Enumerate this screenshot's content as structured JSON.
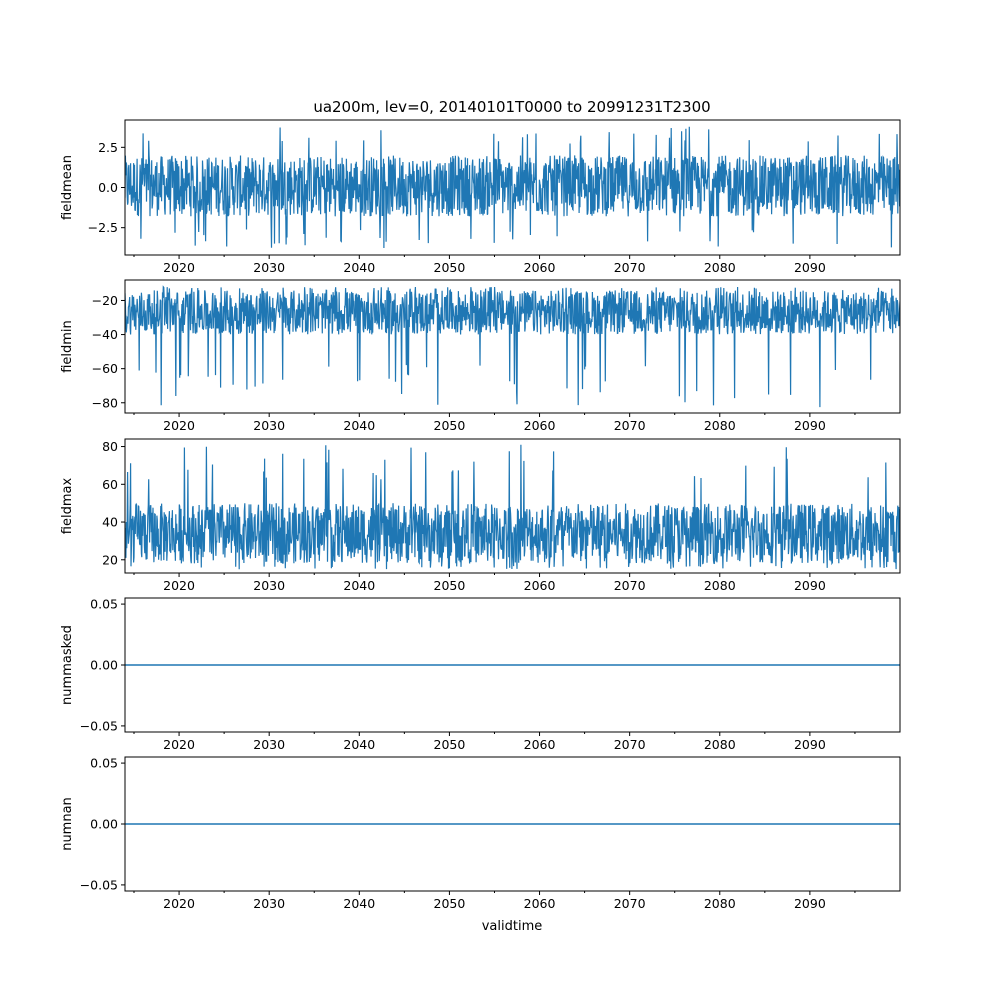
{
  "figure": {
    "title": "ua200m, lev=0, 20140101T0000 to 20991231T2300",
    "xlabel": "validtime"
  },
  "chart_data": [
    {
      "type": "line",
      "ylabel": "fieldmean",
      "xlim": [
        2014.0,
        2100.0
      ],
      "ylim": [
        -4.2,
        4.2
      ],
      "yticks": [
        -2.5,
        0.0,
        2.5
      ],
      "ytick_labels": [
        "−2.5",
        "0.0",
        "2.5"
      ],
      "xticks": [
        2020,
        2030,
        2040,
        2050,
        2060,
        2070,
        2080,
        2090
      ],
      "xtick_labels": [
        "2020",
        "2030",
        "2040",
        "2050",
        "2060",
        "2070",
        "2080",
        "2090"
      ],
      "series": [
        {
          "name": "fieldmean",
          "color": "#1f77b4",
          "style": "noise",
          "baseline": 0.0,
          "typical_low": -1.8,
          "typical_high": 2.0,
          "extreme_low": -3.8,
          "extreme_high": 3.8
        }
      ]
    },
    {
      "type": "line",
      "ylabel": "fieldmin",
      "xlim": [
        2014.0,
        2100.0
      ],
      "ylim": [
        -86.0,
        -8.0
      ],
      "yticks": [
        -80,
        -60,
        -40,
        -20
      ],
      "ytick_labels": [
        "−80",
        "−60",
        "−40",
        "−20"
      ],
      "xticks": [
        2020,
        2030,
        2040,
        2050,
        2060,
        2070,
        2080,
        2090
      ],
      "xtick_labels": [
        "2020",
        "2030",
        "2040",
        "2050",
        "2060",
        "2070",
        "2080",
        "2090"
      ],
      "series": [
        {
          "name": "fieldmin",
          "color": "#1f77b4",
          "style": "noise",
          "baseline": -25.0,
          "typical_low": -40.0,
          "typical_high": -14.0,
          "extreme_low": -83.0,
          "extreme_high": -12.0
        }
      ]
    },
    {
      "type": "line",
      "ylabel": "fieldmax",
      "xlim": [
        2014.0,
        2100.0
      ],
      "ylim": [
        13.0,
        84.0
      ],
      "yticks": [
        20,
        40,
        60,
        80
      ],
      "ytick_labels": [
        "20",
        "40",
        "60",
        "80"
      ],
      "xticks": [
        2020,
        2030,
        2040,
        2050,
        2060,
        2070,
        2080,
        2090
      ],
      "xtick_labels": [
        "2020",
        "2030",
        "2040",
        "2050",
        "2060",
        "2070",
        "2080",
        "2090"
      ],
      "series": [
        {
          "name": "fieldmax",
          "color": "#1f77b4",
          "style": "noise",
          "baseline": 30.0,
          "typical_low": 18.0,
          "typical_high": 50.0,
          "extreme_low": 15.0,
          "extreme_high": 81.0
        }
      ]
    },
    {
      "type": "line",
      "ylabel": "nummasked",
      "xlim": [
        2014.0,
        2100.0
      ],
      "ylim": [
        -0.055,
        0.055
      ],
      "yticks": [
        -0.05,
        0.0,
        0.05
      ],
      "ytick_labels": [
        "−0.05",
        "0.00",
        "0.05"
      ],
      "xticks": [
        2020,
        2030,
        2040,
        2050,
        2060,
        2070,
        2080,
        2090
      ],
      "xtick_labels": [
        "2020",
        "2030",
        "2040",
        "2050",
        "2060",
        "2070",
        "2080",
        "2090"
      ],
      "series": [
        {
          "name": "nummasked",
          "color": "#1f77b4",
          "style": "constant",
          "value": 0.0
        }
      ]
    },
    {
      "type": "line",
      "ylabel": "numnan",
      "xlim": [
        2014.0,
        2100.0
      ],
      "ylim": [
        -0.055,
        0.055
      ],
      "yticks": [
        -0.05,
        0.0,
        0.05
      ],
      "ytick_labels": [
        "−0.05",
        "0.00",
        "0.05"
      ],
      "xticks": [
        2020,
        2030,
        2040,
        2050,
        2060,
        2070,
        2080,
        2090
      ],
      "xtick_labels": [
        "2020",
        "2030",
        "2040",
        "2050",
        "2060",
        "2070",
        "2080",
        "2090"
      ],
      "series": [
        {
          "name": "numnan",
          "color": "#1f77b4",
          "style": "constant",
          "value": 0.0
        }
      ]
    }
  ]
}
